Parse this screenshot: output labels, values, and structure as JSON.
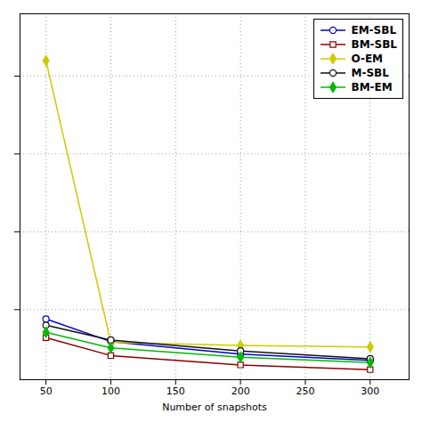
{
  "chart_data": {
    "type": "line",
    "xlabel": "Number of snapshots",
    "x": [
      50,
      100,
      200,
      300
    ],
    "series": [
      {
        "name": "EM-SBL",
        "color": "#0000cc",
        "marker": "circle",
        "values": [
          0.44,
          0.295,
          0.215,
          0.175
        ]
      },
      {
        "name": "BM-SBL",
        "color": "#880000",
        "marker": "square",
        "values": [
          0.32,
          0.205,
          0.145,
          0.115
        ]
      },
      {
        "name": "O-EM",
        "color": "#cccc00",
        "marker": "diamond",
        "values": [
          2.1,
          0.29,
          0.27,
          0.26
        ]
      },
      {
        "name": "M-SBL",
        "color": "#111111",
        "marker": "circle",
        "values": [
          0.4,
          0.305,
          0.235,
          0.185
        ]
      },
      {
        "name": "BM-EM",
        "color": "#00bb00",
        "marker": "diamond",
        "values": [
          0.355,
          0.255,
          0.195,
          0.16
        ]
      }
    ],
    "xlim": [
      30,
      330
    ],
    "ylim": [
      0.05,
      2.4
    ],
    "xticks": [
      50,
      100,
      150,
      200,
      250,
      300
    ],
    "yticks": [
      0.5,
      1,
      1.5,
      2
    ],
    "grid": true,
    "legend": "upper right",
    "tick_labels": "x"
  }
}
